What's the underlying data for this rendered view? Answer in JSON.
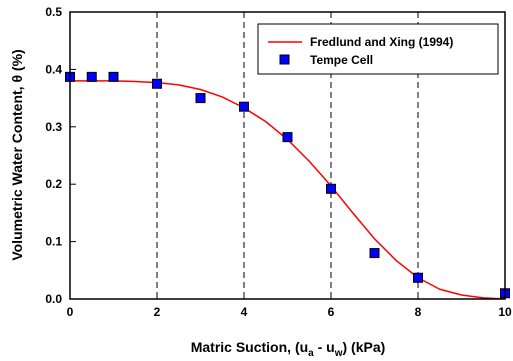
{
  "chart_data": {
    "type": "scatter",
    "xlabel": "Matric Suction, (u",
    "xlabel_sub1": "a",
    "xlabel_mid": " - u",
    "xlabel_sub2": "w",
    "xlabel_end": ") (kPa)",
    "ylabel": "Volumetric Water Content, θ (%)",
    "xlim": [
      0,
      10
    ],
    "ylim": [
      0,
      0.5
    ],
    "xticks": [
      0,
      2,
      4,
      6,
      8,
      10
    ],
    "yticks": [
      0.0,
      0.1,
      0.2,
      0.3,
      0.4,
      0.5
    ],
    "xtick_labels": [
      "0",
      "2",
      "4",
      "6",
      "8",
      "10"
    ],
    "ytick_labels": [
      "0.0",
      "0.1",
      "0.2",
      "0.3",
      "0.4",
      "0.5"
    ],
    "grid": "vertical dashed",
    "legend_position": "top-right",
    "series": [
      {
        "name": "Fredlund and Xing (1994)",
        "kind": "line",
        "color": "#ff0000",
        "x": [
          0,
          0.5,
          1,
          1.5,
          2,
          2.5,
          3,
          3.5,
          4,
          4.5,
          5,
          5.5,
          6,
          6.5,
          7,
          7.5,
          8,
          8.5,
          9,
          9.5,
          10
        ],
        "y": [
          0.38,
          0.38,
          0.38,
          0.379,
          0.377,
          0.373,
          0.365,
          0.352,
          0.333,
          0.309,
          0.278,
          0.24,
          0.197,
          0.15,
          0.105,
          0.067,
          0.037,
          0.017,
          0.007,
          0.002,
          0.0
        ]
      },
      {
        "name": "Tempe Cell",
        "kind": "scatter",
        "color": "#0000ff",
        "x": [
          0,
          0.5,
          1,
          2,
          3,
          4,
          5,
          6,
          7,
          8,
          10
        ],
        "y": [
          0.387,
          0.387,
          0.387,
          0.375,
          0.35,
          0.335,
          0.282,
          0.192,
          0.08,
          0.037,
          0.01
        ]
      }
    ]
  }
}
